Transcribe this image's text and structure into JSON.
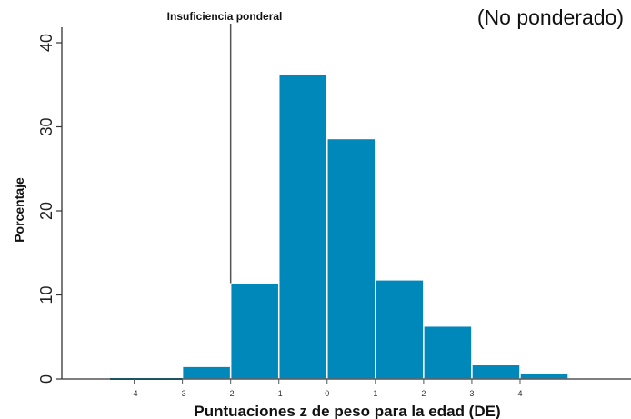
{
  "chart_data": {
    "type": "bar",
    "title": "",
    "subtitle": "(No ponderado)",
    "xlabel": "Puntuaciones z de peso para la edad (DE)",
    "ylabel": "Porcentaje",
    "bins": [
      {
        "x0": -3,
        "x1": -2,
        "value": 1.5
      },
      {
        "x0": -2,
        "x1": -1,
        "value": 11.4
      },
      {
        "x0": -1,
        "x1": 0,
        "value": 36.3
      },
      {
        "x0": 0,
        "x1": 1,
        "value": 28.6
      },
      {
        "x0": 1,
        "x1": 2,
        "value": 11.8
      },
      {
        "x0": 2,
        "x1": 3,
        "value": 6.3
      },
      {
        "x0": 3,
        "x1": 4,
        "value": 1.7
      },
      {
        "x0": 4,
        "x1": 5,
        "value": 0.7
      }
    ],
    "xlim": [
      -5.5,
      6.3
    ],
    "ylim": [
      0,
      40
    ],
    "yticks": [
      0,
      10,
      20,
      30,
      40
    ],
    "xticks": [
      -4,
      -3,
      -2,
      -1,
      0,
      1,
      2,
      3,
      4
    ],
    "bar_color": "#0088bb",
    "grid": false,
    "annotation": {
      "label": "Insuficiencia ponderal",
      "x": -2,
      "y_from": 11.4,
      "y_to": 42
    }
  }
}
